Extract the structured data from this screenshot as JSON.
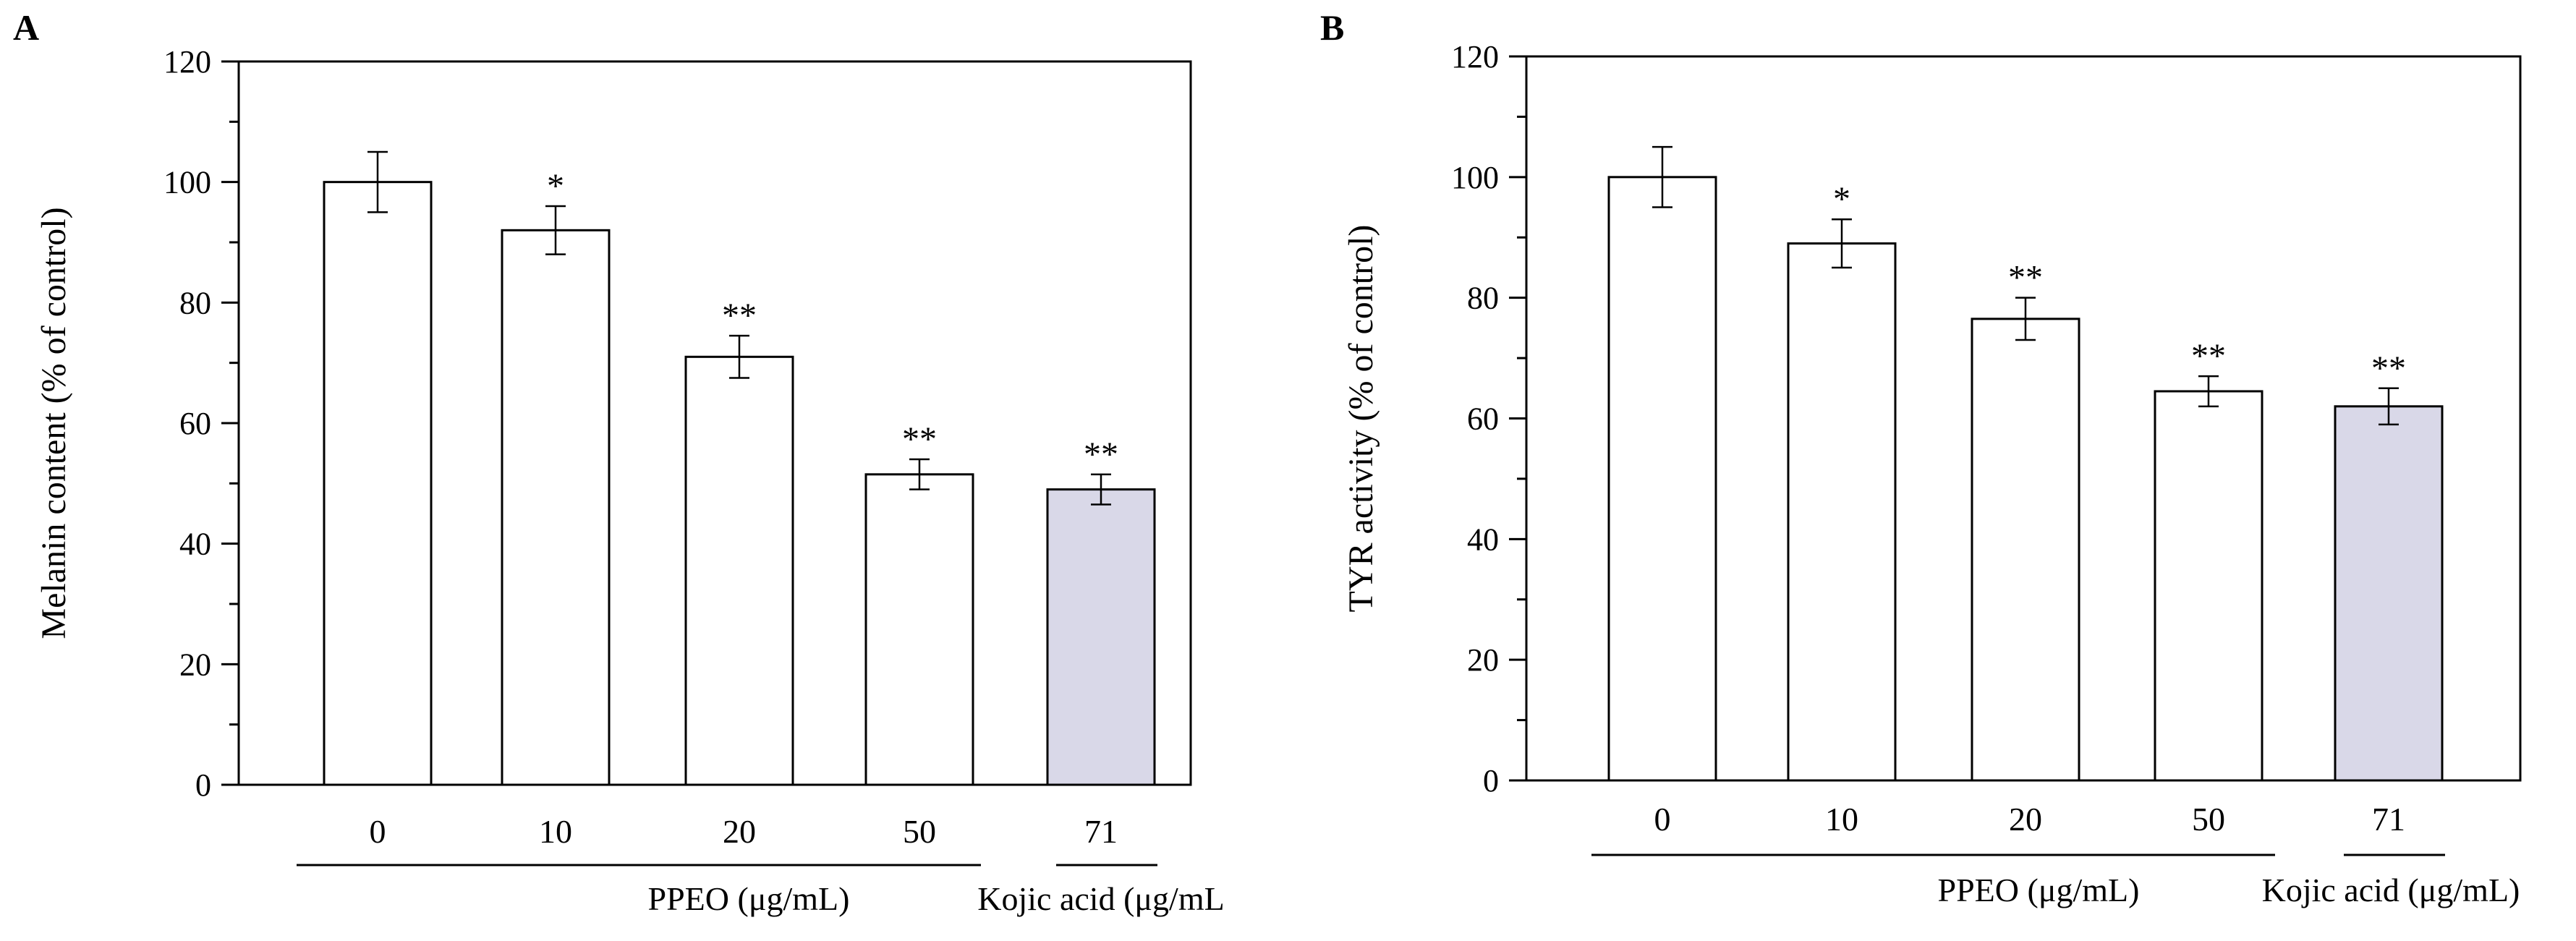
{
  "chart_data": [
    {
      "type": "bar",
      "panel_label": "A",
      "categories": [
        "0",
        "10",
        "20",
        "50",
        "71"
      ],
      "values": [
        100,
        92,
        71,
        51.5,
        49
      ],
      "errors": [
        5,
        4,
        3.5,
        2.5,
        2.5
      ],
      "significance": [
        "",
        "*",
        "**",
        "**",
        "**"
      ],
      "bar_colors": [
        "#ffffff",
        "#ffffff",
        "#ffffff",
        "#ffffff",
        "#d9d8e8"
      ],
      "ylabel": "Melanin content (% of control)",
      "yticks": [
        "0",
        "20",
        "40",
        "60",
        "80",
        "100",
        "120"
      ],
      "ylim": [
        0,
        120
      ],
      "groups": [
        {
          "label": "PPEO (μg/mL)",
          "range": [
            0,
            3
          ]
        },
        {
          "label": "Kojic acid (μg/mL",
          "range": [
            4,
            4
          ]
        }
      ]
    },
    {
      "type": "bar",
      "panel_label": "B",
      "categories": [
        "0",
        "10",
        "20",
        "50",
        "71"
      ],
      "values": [
        100,
        89,
        76.5,
        64.5,
        62
      ],
      "errors": [
        5,
        4,
        3.5,
        2.5,
        3
      ],
      "significance": [
        "",
        "*",
        "**",
        "**",
        "**"
      ],
      "bar_colors": [
        "#ffffff",
        "#ffffff",
        "#ffffff",
        "#ffffff",
        "#d9d8e8"
      ],
      "ylabel": "TYR activity (% of control)",
      "yticks": [
        "0",
        "20",
        "40",
        "60",
        "80",
        "100",
        "120"
      ],
      "ylim": [
        0,
        120
      ],
      "groups": [
        {
          "label": "PPEO (μg/mL)",
          "range": [
            0,
            3
          ]
        },
        {
          "label": "Kojic acid (μg/mL)",
          "range": [
            4,
            4
          ]
        }
      ]
    }
  ]
}
